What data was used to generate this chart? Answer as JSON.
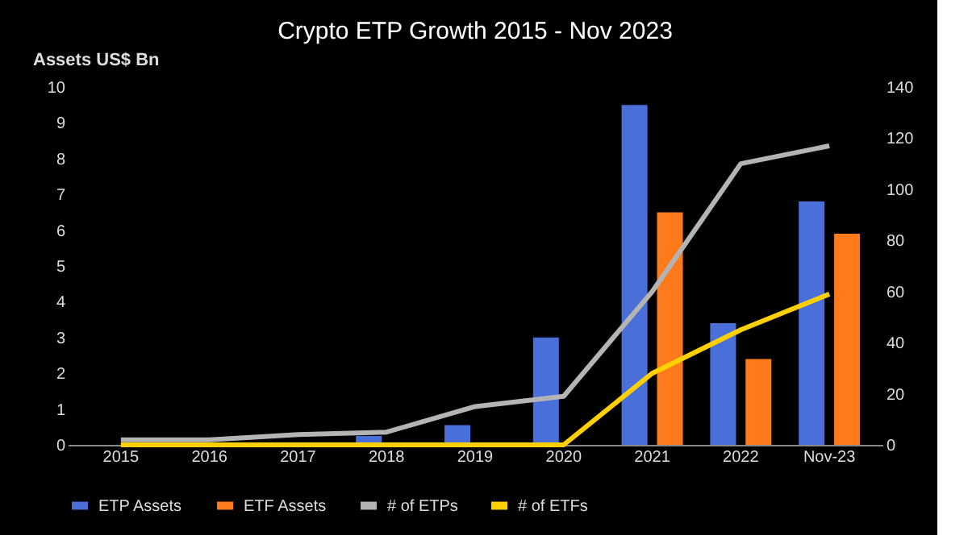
{
  "chart_data": {
    "type": "bar",
    "title": "Crypto ETP Growth 2015 - Nov 2023",
    "ylabel": "Assets US$ Bn",
    "categories": [
      "2015",
      "2016",
      "2017",
      "2018",
      "2019",
      "2020",
      "2021",
      "2022",
      "Nov-23"
    ],
    "series": [
      {
        "name": "ETP Assets",
        "color": "#4a6fd8",
        "values": [
          0,
          0,
          0,
          0.25,
          0.55,
          3.0,
          9.5,
          3.4,
          6.8
        ]
      },
      {
        "name": "ETF Assets",
        "color": "#ff7a1a",
        "values": [
          0,
          0,
          0,
          0,
          0,
          0,
          6.5,
          2.4,
          5.9
        ]
      },
      {
        "name": "# of ETPs",
        "type": "line",
        "axis": "y2",
        "color": "#b4b4b4",
        "values": [
          2,
          2,
          4,
          5,
          15,
          19,
          60,
          110,
          117
        ]
      },
      {
        "name": "# of ETFs",
        "type": "line",
        "axis": "y2",
        "color": "#ffd000",
        "values": [
          0,
          0,
          0,
          0,
          0,
          0,
          28,
          45,
          59
        ]
      }
    ],
    "ylim": [
      0,
      10
    ],
    "yticks": [
      0,
      1,
      2,
      3,
      4,
      5,
      6,
      7,
      8,
      9,
      10
    ],
    "y2lim": [
      0,
      140
    ],
    "y2ticks": [
      0,
      20,
      40,
      60,
      80,
      100,
      120,
      140
    ],
    "grid": false,
    "legend": "bottom"
  }
}
